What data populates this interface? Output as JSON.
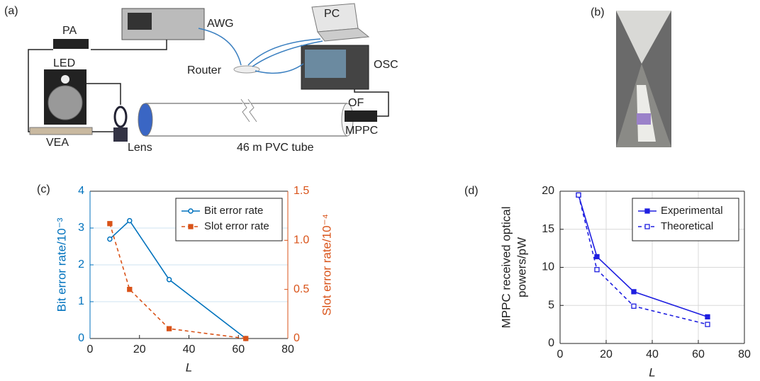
{
  "panels": [
    "(a)",
    "(b)",
    "(c)",
    "(d)"
  ],
  "diagram": {
    "labels": [
      "PA",
      "AWG",
      "PC",
      "Router",
      "OSC",
      "LED",
      "OF",
      "MPPC",
      "VEA",
      "Lens",
      "46 m PVC tube"
    ]
  },
  "chart_data": [
    {
      "type": "line",
      "x_label": "L",
      "y_label": "Bit error rate/10⁻³",
      "y2_label": "Slot error rate/10⁻⁴",
      "x": [
        8,
        16,
        32,
        63
      ],
      "series": [
        {
          "name": "Bit error rate",
          "color": "#0072bd",
          "marker": "open-circle",
          "line_style": "solid",
          "values": [
            2.7,
            3.2,
            1.6,
            0
          ]
        },
        {
          "name": "Slot error rate",
          "color": "#d95319",
          "marker": "filled-square",
          "line_style": "dashed",
          "axis": "y2",
          "values": [
            1.17,
            0.5,
            0.1,
            0
          ]
        }
      ],
      "xlim": [
        0,
        80
      ],
      "xticks": [
        0,
        20,
        40,
        60,
        80
      ],
      "ylim": [
        0,
        4
      ],
      "yticks": [
        0,
        1,
        2,
        3,
        4
      ],
      "y2lim": [
        0,
        1.5
      ],
      "y2ticks": [
        0,
        0.5,
        {
          "value": 1,
          "label": "1.0"
        },
        1.5
      ],
      "y_color": "#0072bd",
      "y2_color": "#d95319",
      "grid": "y",
      "grid_color": "#cfe3f1",
      "legend": "upper right"
    },
    {
      "type": "line",
      "x_label": "L",
      "y_label": [
        "MPPC received optical",
        "powers/pW"
      ],
      "x": [
        8,
        16,
        32,
        64
      ],
      "series": [
        {
          "name": "Experimental",
          "color": "#1f1fe0",
          "marker": "filled-square",
          "line_style": "solid",
          "values": [
            19.5,
            11.4,
            6.8,
            3.5
          ]
        },
        {
          "name": "Theoretical",
          "color": "#1f1fe0",
          "marker": "open-square",
          "line_style": "dashed",
          "values": [
            19.5,
            9.7,
            4.9,
            2.5
          ]
        }
      ],
      "xlim": [
        0,
        80
      ],
      "xticks": [
        0,
        20,
        40,
        60,
        80
      ],
      "ylim": [
        0,
        20
      ],
      "yticks": [
        0,
        5,
        10,
        15,
        20
      ],
      "grid": "both",
      "grid_color": "#d8d8d8",
      "legend": "upper right"
    }
  ]
}
